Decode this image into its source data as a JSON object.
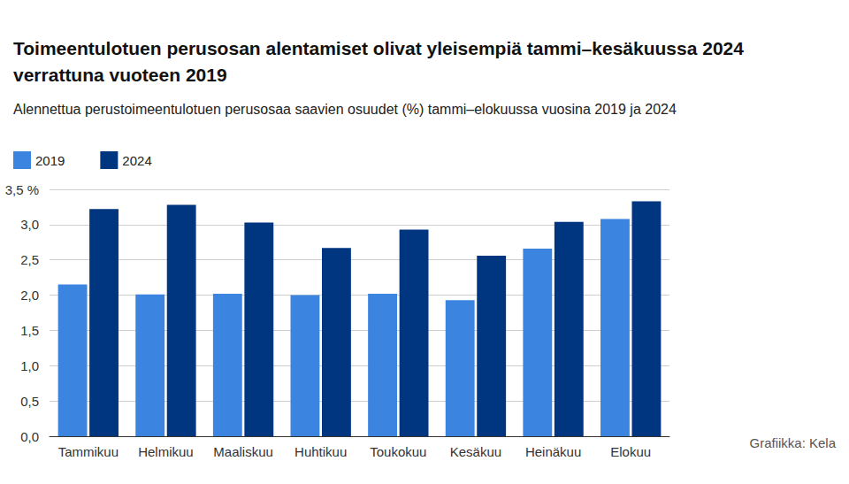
{
  "chart_data": {
    "type": "bar",
    "title": "Toimeentulotuen perusosan alentamiset olivat yleisempiä tammi–kesäkuussa 2024 verrattuna vuoteen 2019",
    "subtitle": "Alennettua perustoimeentulotuen perusosaa saavien osuudet (%) tammi–elokuussa vuosina 2019 ja 2024",
    "source": "Grafiikka: Kela",
    "categories": [
      "Tammikuu",
      "Helmikuu",
      "Maaliskuu",
      "Huhtikuu",
      "Toukokuu",
      "Kesäkuu",
      "Heinäkuu",
      "Elokuu"
    ],
    "series": [
      {
        "name": "2019",
        "color": "#3b84e0",
        "values": [
          2.15,
          2.01,
          2.02,
          2.0,
          2.02,
          1.93,
          2.66,
          3.08
        ]
      },
      {
        "name": "2024",
        "color": "#003580",
        "values": [
          3.22,
          3.28,
          3.03,
          2.67,
          2.93,
          2.56,
          3.04,
          3.33
        ]
      }
    ],
    "ylim": [
      0,
      3.5
    ],
    "yticks": [
      {
        "value": 0,
        "label": "0,0"
      },
      {
        "value": 0.5,
        "label": "0,5"
      },
      {
        "value": 1,
        "label": "1,0"
      },
      {
        "value": 1.5,
        "label": "1,5"
      },
      {
        "value": 2,
        "label": "2,0"
      },
      {
        "value": 2.5,
        "label": "2,5"
      },
      {
        "value": 3,
        "label": "3,0"
      },
      {
        "value": 3.5,
        "label": "3,5 %"
      }
    ],
    "grid": true,
    "legend": "top-left"
  }
}
